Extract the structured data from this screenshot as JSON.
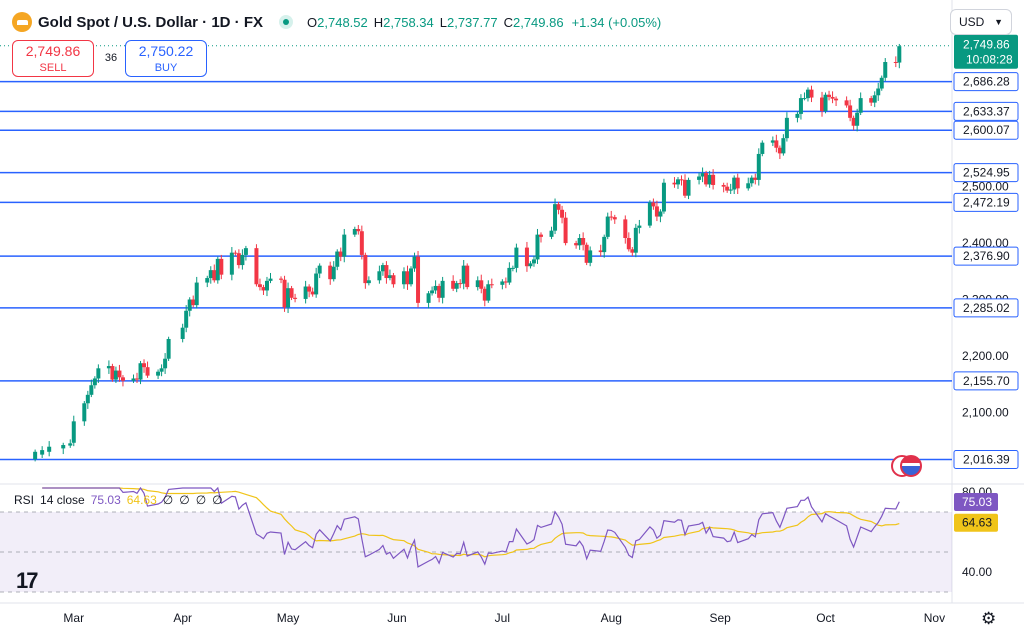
{
  "header": {
    "title": "Gold Spot / U.S. Dollar · 1D · FX",
    "open_label": "O",
    "open": "2,748.52",
    "high_label": "H",
    "high": "2,758.34",
    "low_label": "L",
    "low": "2,737.77",
    "close_label": "C",
    "close": "2,749.86",
    "change": "+1.34 (+0.05%)",
    "currency": "USD"
  },
  "trade": {
    "sell_price": "2,749.86",
    "sell_label": "SELL",
    "spread": "36",
    "buy_price": "2,750.22",
    "buy_label": "BUY"
  },
  "colors": {
    "up": "#089981",
    "down": "#f23645",
    "hline": "#2962ff",
    "rsi": "#7e57c2",
    "rsi_ma": "#f0c419",
    "price_tag": "#089981"
  },
  "chart_data": [
    {
      "type": "candlestick",
      "title": "Gold Spot / U.S. Dollar · 1D · FX",
      "x_axis": {
        "type": "date",
        "labels": [
          "Mar",
          "Apr",
          "May",
          "Jun",
          "Jul",
          "Aug",
          "Sep",
          "Oct",
          "Nov"
        ]
      },
      "y_axis": {
        "ticks": [
          2100,
          2200,
          2300,
          2400,
          2500
        ],
        "tick_labels": [
          "2,100.00",
          "2,200.00",
          "2,300.00",
          "2,400.00",
          "2,500.00"
        ],
        "range": [
          1980,
          2760
        ],
        "side": "right"
      },
      "series": [
        {
          "points": [
            [
              "2024-02-19",
              2017,
              2030
            ],
            [
              "2024-02-21",
              2025,
              2033
            ],
            [
              "2024-02-23",
              2030,
              2039
            ],
            [
              "2024-02-27",
              2036,
              2042
            ],
            [
              "2024-02-29",
              2041,
              2045
            ],
            [
              "2024-03-01",
              2046,
              2084
            ],
            [
              "2024-03-04",
              2084,
              2116
            ],
            [
              "2024-03-05",
              2116,
              2131
            ],
            [
              "2024-03-06",
              2131,
              2148
            ],
            [
              "2024-03-07",
              2148,
              2160
            ],
            [
              "2024-03-08",
              2160,
              2178
            ],
            [
              "2024-03-11",
              2178,
              2182
            ],
            [
              "2024-03-12",
              2182,
              2158
            ],
            [
              "2024-03-13",
              2158,
              2174
            ],
            [
              "2024-03-14",
              2174,
              2162
            ],
            [
              "2024-03-15",
              2162,
              2156
            ],
            [
              "2024-03-18",
              2156,
              2160
            ],
            [
              "2024-03-19",
              2160,
              2158
            ],
            [
              "2024-03-20",
              2158,
              2187
            ],
            [
              "2024-03-21",
              2187,
              2180
            ],
            [
              "2024-03-22",
              2180,
              2165
            ],
            [
              "2024-03-25",
              2165,
              2172
            ],
            [
              "2024-03-26",
              2172,
              2178
            ],
            [
              "2024-03-27",
              2178,
              2195
            ],
            [
              "2024-03-28",
              2195,
              2230
            ],
            [
              "2024-04-01",
              2230,
              2250
            ],
            [
              "2024-04-02",
              2250,
              2280
            ],
            [
              "2024-04-03",
              2280,
              2300
            ],
            [
              "2024-04-04",
              2300,
              2290
            ],
            [
              "2024-04-05",
              2290,
              2330
            ],
            [
              "2024-04-08",
              2330,
              2338
            ],
            [
              "2024-04-09",
              2338,
              2352
            ],
            [
              "2024-04-10",
              2352,
              2334
            ],
            [
              "2024-04-11",
              2334,
              2372
            ],
            [
              "2024-04-12",
              2372,
              2344
            ],
            [
              "2024-04-15",
              2344,
              2383
            ],
            [
              "2024-04-16",
              2383,
              2382
            ],
            [
              "2024-04-17",
              2382,
              2361
            ],
            [
              "2024-04-18",
              2361,
              2379
            ],
            [
              "2024-04-19",
              2379,
              2391
            ],
            [
              "2024-04-22",
              2391,
              2327
            ],
            [
              "2024-04-23",
              2327,
              2322
            ],
            [
              "2024-04-24",
              2322,
              2316
            ],
            [
              "2024-04-25",
              2316,
              2333
            ],
            [
              "2024-04-26",
              2333,
              2337
            ],
            [
              "2024-04-29",
              2337,
              2335
            ],
            [
              "2024-04-30",
              2335,
              2286
            ],
            [
              "2024-05-01",
              2286,
              2320
            ],
            [
              "2024-05-02",
              2320,
              2303
            ],
            [
              "2024-05-03",
              2303,
              2301
            ],
            [
              "2024-05-06",
              2301,
              2323
            ],
            [
              "2024-05-07",
              2323,
              2314
            ],
            [
              "2024-05-08",
              2314,
              2309
            ],
            [
              "2024-05-09",
              2309,
              2346
            ],
            [
              "2024-05-10",
              2346,
              2360
            ],
            [
              "2024-05-13",
              2360,
              2336
            ],
            [
              "2024-05-14",
              2336,
              2358
            ],
            [
              "2024-05-15",
              2358,
              2385
            ],
            [
              "2024-05-16",
              2385,
              2376
            ],
            [
              "2024-05-17",
              2376,
              2415
            ],
            [
              "2024-05-20",
              2415,
              2425
            ],
            [
              "2024-05-21",
              2425,
              2421
            ],
            [
              "2024-05-22",
              2421,
              2379
            ],
            [
              "2024-05-23",
              2379,
              2329
            ],
            [
              "2024-05-24",
              2329,
              2334
            ],
            [
              "2024-05-27",
              2334,
              2350
            ],
            [
              "2024-05-28",
              2350,
              2361
            ],
            [
              "2024-05-29",
              2361,
              2338
            ],
            [
              "2024-05-30",
              2338,
              2343
            ],
            [
              "2024-05-31",
              2343,
              2327
            ],
            [
              "2024-06-03",
              2327,
              2350
            ],
            [
              "2024-06-04",
              2350,
              2327
            ],
            [
              "2024-06-05",
              2327,
              2355
            ],
            [
              "2024-06-06",
              2355,
              2376
            ],
            [
              "2024-06-07",
              2376,
              2294
            ],
            [
              "2024-06-10",
              2294,
              2311
            ],
            [
              "2024-06-11",
              2311,
              2316
            ],
            [
              "2024-06-12",
              2316,
              2324
            ],
            [
              "2024-06-13",
              2324,
              2303
            ],
            [
              "2024-06-14",
              2303,
              2333
            ],
            [
              "2024-06-17",
              2333,
              2319
            ],
            [
              "2024-06-18",
              2319,
              2329
            ],
            [
              "2024-06-19",
              2329,
              2328
            ],
            [
              "2024-06-20",
              2328,
              2360
            ],
            [
              "2024-06-21",
              2360,
              2322
            ],
            [
              "2024-06-24",
              2322,
              2334
            ],
            [
              "2024-06-25",
              2334,
              2319
            ],
            [
              "2024-06-26",
              2319,
              2298
            ],
            [
              "2024-06-27",
              2298,
              2327
            ],
            [
              "2024-06-28",
              2327,
              2326
            ],
            [
              "2024-07-01",
              2326,
              2332
            ],
            [
              "2024-07-02",
              2332,
              2330
            ],
            [
              "2024-07-03",
              2330,
              2356
            ],
            [
              "2024-07-04",
              2356,
              2356
            ],
            [
              "2024-07-05",
              2356,
              2392
            ],
            [
              "2024-07-08",
              2392,
              2359
            ],
            [
              "2024-07-09",
              2359,
              2364
            ],
            [
              "2024-07-10",
              2364,
              2371
            ],
            [
              "2024-07-11",
              2371,
              2415
            ],
            [
              "2024-07-12",
              2415,
              2411
            ],
            [
              "2024-07-15",
              2411,
              2422
            ],
            [
              "2024-07-16",
              2422,
              2469
            ],
            [
              "2024-07-17",
              2469,
              2459
            ],
            [
              "2024-07-18",
              2459,
              2445
            ],
            [
              "2024-07-19",
              2445,
              2400
            ],
            [
              "2024-07-22",
              2400,
              2396
            ],
            [
              "2024-07-23",
              2396,
              2409
            ],
            [
              "2024-07-24",
              2409,
              2397
            ],
            [
              "2024-07-25",
              2397,
              2365
            ],
            [
              "2024-07-26",
              2365,
              2387
            ],
            [
              "2024-07-29",
              2387,
              2384
            ],
            [
              "2024-07-30",
              2384,
              2411
            ],
            [
              "2024-07-31",
              2411,
              2447
            ],
            [
              "2024-08-01",
              2447,
              2446
            ],
            [
              "2024-08-02",
              2446,
              2442
            ],
            [
              "2024-08-05",
              2442,
              2409
            ],
            [
              "2024-08-06",
              2409,
              2389
            ],
            [
              "2024-08-07",
              2389,
              2383
            ],
            [
              "2024-08-08",
              2383,
              2427
            ],
            [
              "2024-08-09",
              2427,
              2431
            ],
            [
              "2024-08-12",
              2431,
              2472
            ],
            [
              "2024-08-13",
              2472,
              2465
            ],
            [
              "2024-08-14",
              2465,
              2447
            ],
            [
              "2024-08-15",
              2447,
              2456
            ],
            [
              "2024-08-16",
              2456,
              2507
            ],
            [
              "2024-08-19",
              2507,
              2504
            ],
            [
              "2024-08-20",
              2504,
              2513
            ],
            [
              "2024-08-21",
              2513,
              2512
            ],
            [
              "2024-08-22",
              2512,
              2484
            ],
            [
              "2024-08-23",
              2484,
              2512
            ],
            [
              "2024-08-26",
              2512,
              2518
            ],
            [
              "2024-08-27",
              2518,
              2524
            ],
            [
              "2024-08-28",
              2524,
              2504
            ],
            [
              "2024-08-29",
              2504,
              2521
            ],
            [
              "2024-08-30",
              2521,
              2503
            ],
            [
              "2024-09-02",
              2503,
              2500
            ],
            [
              "2024-09-03",
              2500,
              2493
            ],
            [
              "2024-09-04",
              2493,
              2495
            ],
            [
              "2024-09-05",
              2495,
              2516
            ],
            [
              "2024-09-06",
              2516,
              2497
            ],
            [
              "2024-09-09",
              2497,
              2506
            ],
            [
              "2024-09-10",
              2506,
              2516
            ],
            [
              "2024-09-11",
              2516,
              2512
            ],
            [
              "2024-09-12",
              2512,
              2558
            ],
            [
              "2024-09-13",
              2558,
              2578
            ],
            [
              "2024-09-16",
              2578,
              2582
            ],
            [
              "2024-09-17",
              2582,
              2569
            ],
            [
              "2024-09-18",
              2569,
              2559
            ],
            [
              "2024-09-19",
              2559,
              2586
            ],
            [
              "2024-09-20",
              2586,
              2622
            ],
            [
              "2024-09-23",
              2622,
              2629
            ],
            [
              "2024-09-24",
              2629,
              2657
            ],
            [
              "2024-09-25",
              2657,
              2657
            ],
            [
              "2024-09-26",
              2657,
              2672
            ],
            [
              "2024-09-27",
              2672,
              2658
            ],
            [
              "2024-09-30",
              2658,
              2634
            ],
            [
              "2024-10-01",
              2634,
              2663
            ],
            [
              "2024-10-02",
              2663,
              2659
            ],
            [
              "2024-10-03",
              2659,
              2656
            ],
            [
              "2024-10-04",
              2656,
              2653
            ],
            [
              "2024-10-07",
              2653,
              2644
            ],
            [
              "2024-10-08",
              2644,
              2622
            ],
            [
              "2024-10-09",
              2622,
              2608
            ],
            [
              "2024-10-10",
              2608,
              2631
            ],
            [
              "2024-10-11",
              2631,
              2657
            ],
            [
              "2024-10-14",
              2657,
              2649
            ],
            [
              "2024-10-15",
              2649,
              2662
            ],
            [
              "2024-10-16",
              2662,
              2674
            ],
            [
              "2024-10-17",
              2674,
              2693
            ],
            [
              "2024-10-18",
              2693,
              2721
            ],
            [
              "2024-10-21",
              2721,
              2720
            ],
            [
              "2024-10-22",
              2720,
              2749
            ]
          ]
        }
      ],
      "horizontal_levels": [
        "2,686.28",
        "2,633.37",
        "2,600.07",
        "2,524.95",
        "2,472.19",
        "2,376.90",
        "2,285.02",
        "2,155.70",
        "2,016.39"
      ],
      "last_price": "2,749.86",
      "countdown": "10:08:28"
    },
    {
      "type": "line",
      "title": "RSI",
      "params": "14 close",
      "legend_values": [
        "75.03",
        "64.63"
      ],
      "extra_flags": [
        "∅",
        "∅",
        "∅",
        "∅"
      ],
      "y_axis": {
        "ticks": [
          40,
          80
        ],
        "tick_labels": [
          "40.00",
          "80.00"
        ],
        "range": [
          26,
          84
        ],
        "band": [
          30,
          70
        ]
      },
      "series": [
        {
          "name": "RSI",
          "color": "#7e57c2",
          "last_label": "75.03"
        },
        {
          "name": "MA",
          "color": "#f0c419",
          "last_label": "64.63"
        }
      ]
    }
  ]
}
